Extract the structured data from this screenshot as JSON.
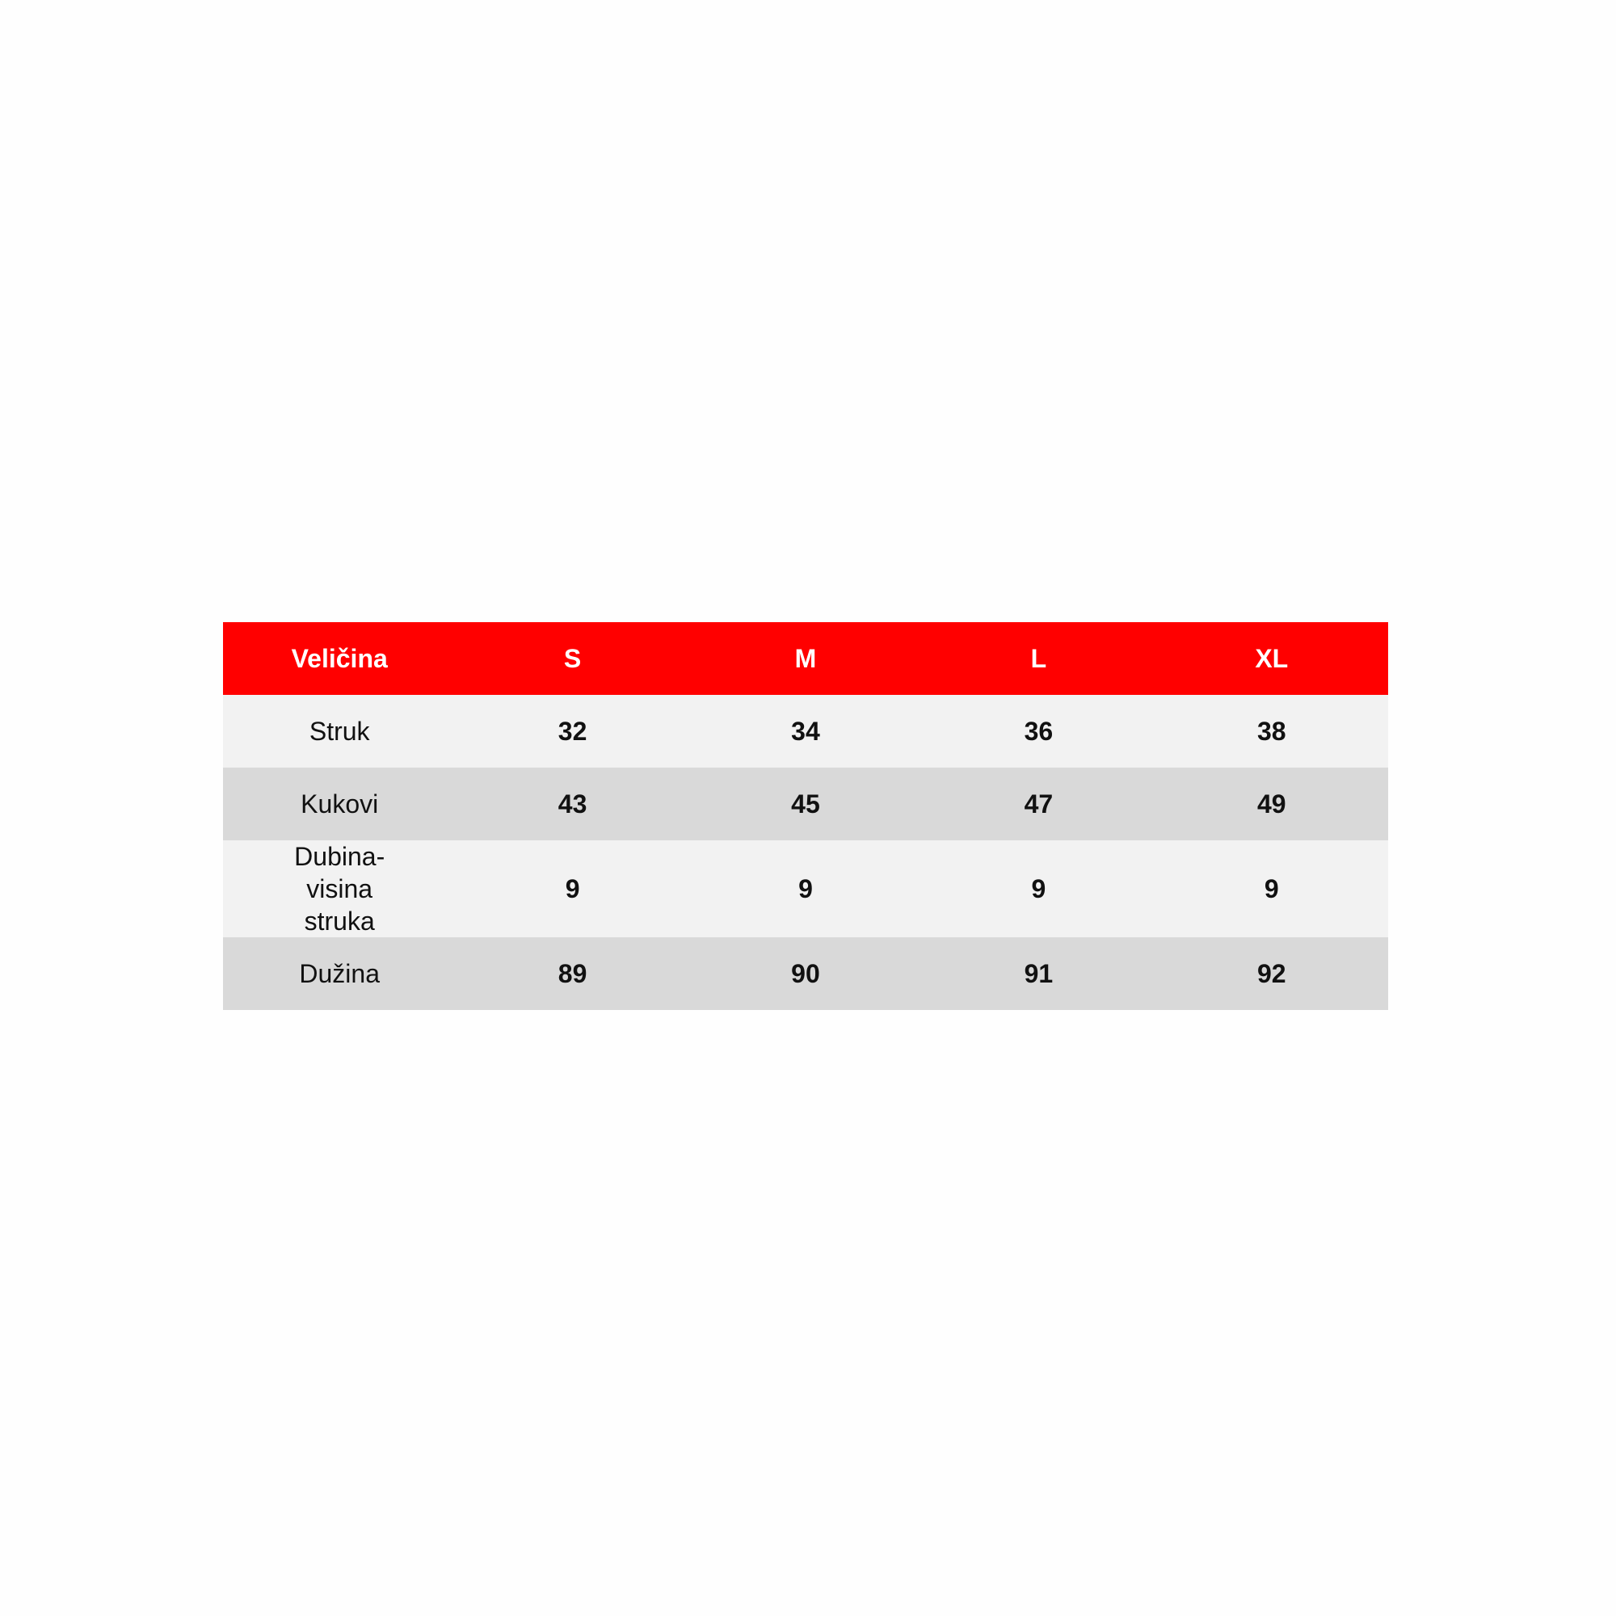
{
  "colors": {
    "header": "#ff0000",
    "row_light": "#f2f2f2",
    "row_dark": "#d9d9d9"
  },
  "table": {
    "headers": [
      "Veličina",
      "S",
      "M",
      "L",
      "XL"
    ],
    "rows": [
      {
        "label": "Struk",
        "values": [
          "32",
          "34",
          "36",
          "38"
        ]
      },
      {
        "label": "Kukovi",
        "values": [
          "43",
          "45",
          "47",
          "49"
        ]
      },
      {
        "label": "Dubina-visina struka",
        "values": [
          "9",
          "9",
          "9",
          "9"
        ]
      },
      {
        "label": "Dužina",
        "values": [
          "89",
          "90",
          "91",
          "92"
        ]
      }
    ]
  }
}
